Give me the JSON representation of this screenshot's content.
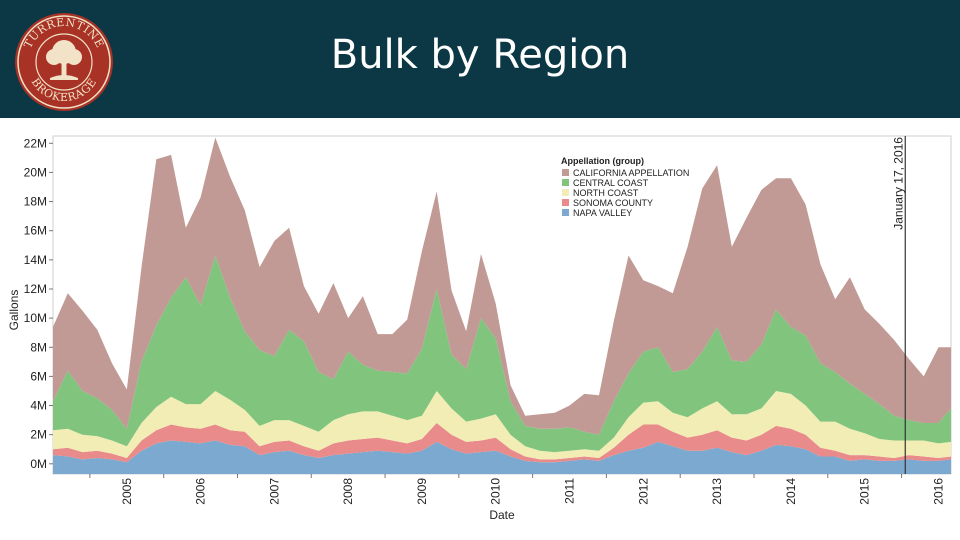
{
  "header": {
    "title": "Bulk by Region",
    "logo_top_text": "TURRENTINE",
    "logo_bottom_text": "BROKERAGE"
  },
  "colors": {
    "header_bg": "#0c3845",
    "logo_red": "#a83225"
  },
  "chart_data": {
    "type": "area",
    "stacked": true,
    "ylabel": "Gallons",
    "xlabel": "Date",
    "ylim": [
      0,
      22.5
    ],
    "y_ticks": [
      0,
      2,
      4,
      6,
      8,
      10,
      12,
      14,
      16,
      18,
      20,
      22
    ],
    "y_tick_labels": [
      "0M",
      "2M",
      "4M",
      "6M",
      "8M",
      "10M",
      "12M",
      "14M",
      "16M",
      "18M",
      "20M",
      "22M"
    ],
    "x_range": [
      2004.5,
      2016.67
    ],
    "x_ticks": [
      "2005",
      "2006",
      "2007",
      "2008",
      "2009",
      "2010",
      "2011",
      "2012",
      "2013",
      "2014",
      "2015",
      "2016"
    ],
    "legend_title": "Appellation (group)",
    "legend_position": "top-center",
    "annotation": {
      "label": "January 17, 2016",
      "x": 2016.05
    },
    "x": [
      2004.5,
      2004.7,
      2004.9,
      2005.1,
      2005.3,
      2005.5,
      2005.7,
      2005.9,
      2006.1,
      2006.3,
      2006.5,
      2006.7,
      2006.9,
      2007.1,
      2007.3,
      2007.5,
      2007.7,
      2007.9,
      2008.1,
      2008.3,
      2008.5,
      2008.7,
      2008.9,
      2009.1,
      2009.3,
      2009.5,
      2009.7,
      2009.9,
      2010.1,
      2010.3,
      2010.5,
      2010.7,
      2010.9,
      2011.1,
      2011.3,
      2011.5,
      2011.7,
      2011.9,
      2012.1,
      2012.3,
      2012.5,
      2012.7,
      2012.9,
      2013.1,
      2013.3,
      2013.5,
      2013.7,
      2013.9,
      2014.1,
      2014.3,
      2014.5,
      2014.7,
      2014.9,
      2015.1,
      2015.3,
      2015.5,
      2015.7,
      2015.9,
      2016.1,
      2016.3,
      2016.5,
      2016.67
    ],
    "series": [
      {
        "name": "NAPA VALLEY",
        "color": "#7ba9cf",
        "values": [
          0.6,
          0.5,
          0.3,
          0.4,
          0.3,
          0.1,
          0.9,
          1.4,
          1.6,
          1.5,
          1.4,
          1.6,
          1.3,
          1.2,
          0.6,
          0.8,
          0.9,
          0.6,
          0.4,
          0.6,
          0.7,
          0.8,
          0.9,
          0.8,
          0.7,
          0.9,
          1.5,
          1.0,
          0.7,
          0.8,
          0.9,
          0.5,
          0.2,
          0.1,
          0.1,
          0.2,
          0.3,
          0.2,
          0.6,
          0.9,
          1.1,
          1.5,
          1.2,
          0.9,
          0.9,
          1.1,
          0.8,
          0.6,
          0.9,
          1.3,
          1.2,
          1.0,
          0.5,
          0.5,
          0.2,
          0.3,
          0.2,
          0.2,
          0.3,
          0.2,
          0.2,
          0.3
        ]
      },
      {
        "name": "SONOMA COUNTY",
        "color": "#e88b8a",
        "values": [
          0.4,
          0.6,
          0.5,
          0.5,
          0.4,
          0.3,
          0.7,
          0.9,
          1.1,
          1.0,
          1.0,
          1.1,
          1.0,
          1.0,
          0.6,
          0.7,
          0.7,
          0.6,
          0.5,
          0.8,
          0.9,
          0.9,
          0.9,
          0.8,
          0.7,
          0.8,
          1.3,
          1.0,
          0.8,
          0.8,
          0.9,
          0.5,
          0.3,
          0.2,
          0.2,
          0.2,
          0.2,
          0.2,
          0.5,
          1.1,
          1.6,
          1.2,
          1.0,
          0.9,
          1.1,
          1.2,
          1.0,
          1.0,
          1.1,
          1.3,
          1.2,
          1.0,
          0.6,
          0.4,
          0.4,
          0.3,
          0.3,
          0.2,
          0.3,
          0.3,
          0.2,
          0.2
        ]
      },
      {
        "name": "NORTH COAST",
        "color": "#f2edb4",
        "values": [
          1.3,
          1.3,
          1.2,
          1.0,
          0.9,
          0.8,
          1.2,
          1.6,
          1.9,
          1.6,
          1.7,
          2.3,
          2.1,
          1.5,
          1.4,
          1.5,
          1.4,
          1.4,
          1.3,
          1.6,
          1.8,
          1.9,
          1.8,
          1.7,
          1.6,
          1.6,
          2.2,
          1.8,
          1.4,
          1.5,
          1.6,
          1.0,
          0.7,
          0.6,
          0.5,
          0.5,
          0.5,
          0.5,
          0.7,
          1.2,
          1.5,
          1.6,
          1.3,
          1.4,
          1.8,
          2.0,
          1.6,
          1.8,
          1.8,
          2.4,
          2.4,
          2.0,
          1.8,
          2.0,
          1.8,
          1.5,
          1.2,
          1.2,
          1.0,
          1.1,
          1.0,
          1.0
        ]
      },
      {
        "name": "CENTRAL COAST",
        "color": "#80c47e",
        "values": [
          2.0,
          4.0,
          3.0,
          2.6,
          2.1,
          1.2,
          4.2,
          5.6,
          6.8,
          8.7,
          6.8,
          9.3,
          7.0,
          5.4,
          5.2,
          4.4,
          6.2,
          5.8,
          4.1,
          2.8,
          4.3,
          3.2,
          2.8,
          3.0,
          3.2,
          4.6,
          7.0,
          3.7,
          3.6,
          6.9,
          5.2,
          2.3,
          1.4,
          1.5,
          1.6,
          1.6,
          1.2,
          1.1,
          2.5,
          3.0,
          3.5,
          3.7,
          2.8,
          3.3,
          3.9,
          5.1,
          3.7,
          3.6,
          4.4,
          5.6,
          4.6,
          4.8,
          4.0,
          3.4,
          3.1,
          2.7,
          2.4,
          1.7,
          1.4,
          1.2,
          1.4,
          2.3
        ]
      },
      {
        "name": "CALIFORNIA APPELLATION",
        "color": "#c29a95",
        "values": [
          5.1,
          5.3,
          5.5,
          4.7,
          3.2,
          2.7,
          6.5,
          11.4,
          9.8,
          3.4,
          7.4,
          8.1,
          8.3,
          8.3,
          5.7,
          7.9,
          7.0,
          3.8,
          4.0,
          6.6,
          2.3,
          4.7,
          2.5,
          2.6,
          3.7,
          6.7,
          6.7,
          4.4,
          2.6,
          4.4,
          2.4,
          1.1,
          0.7,
          1.0,
          1.1,
          1.5,
          2.6,
          2.7,
          5.5,
          8.1,
          4.9,
          4.2,
          5.4,
          8.4,
          11.2,
          11.1,
          7.8,
          9.9,
          10.6,
          9.0,
          10.2,
          9.0,
          6.8,
          5.0,
          7.3,
          5.8,
          5.5,
          5.2,
          4.2,
          3.2,
          5.2,
          4.2
        ]
      }
    ]
  }
}
